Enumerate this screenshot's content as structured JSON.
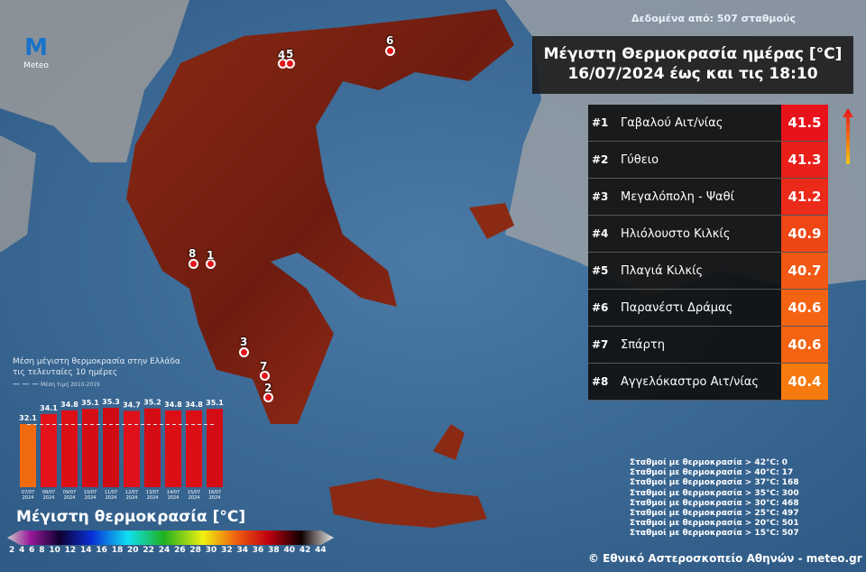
{
  "source_note": "Δεδομένα από: 507 σταθμούς",
  "logo_text": "Meteo",
  "title_line1": "Μέγιστη Θερμοκρασία ημέρας [°C]",
  "title_line2": "16/07/2024 έως και τις 18:10",
  "ranking": [
    {
      "rank": "#1",
      "name": "Γαβαλού Αιτ/νίας",
      "value": "41.5",
      "color": "#e8121b"
    },
    {
      "rank": "#2",
      "name": "Γύθειο",
      "value": "41.3",
      "color": "#ea1f1a"
    },
    {
      "rank": "#3",
      "name": "Μεγαλόπολη - Ψαθί",
      "value": "41.2",
      "color": "#ec2a19"
    },
    {
      "rank": "#4",
      "name": "Ηλιόλουστο Κιλκίς",
      "value": "40.9",
      "color": "#ef4616"
    },
    {
      "rank": "#5",
      "name": "Πλαγιά Κιλκίς",
      "value": "40.7",
      "color": "#f15814"
    },
    {
      "rank": "#6",
      "name": "Παρανέστι Δράμας",
      "value": "40.6",
      "color": "#f36312"
    },
    {
      "rank": "#7",
      "name": "Σπάρτη",
      "value": "40.6",
      "color": "#f36312"
    },
    {
      "rank": "#8",
      "name": "Αγγελόκαστρο Αιτ/νίας",
      "value": "40.4",
      "color": "#f77a0e"
    }
  ],
  "markers": [
    "1",
    "2",
    "3",
    "4",
    "5",
    "6",
    "7",
    "8"
  ],
  "chart_data": {
    "type": "bar",
    "title": "Μέση μέγιστη θερμοκρασία στην Ελλάδα τις τελευταίες 10 ημέρες",
    "reference_label": "Μέση τιμή 2010-2019",
    "reference_value": 32.0,
    "categories": [
      "07/07",
      "08/07",
      "09/07",
      "10/07",
      "11/07",
      "12/07",
      "13/07",
      "14/07",
      "15/07",
      "16/07"
    ],
    "year": "2024",
    "values": [
      32.1,
      34.1,
      34.8,
      35.1,
      35.3,
      34.7,
      35.2,
      34.8,
      34.8,
      35.1
    ],
    "value_labels": [
      "32.1",
      "34.1",
      "34.8",
      "35.1",
      "35.3",
      "34.7",
      "35.2",
      "34.8",
      "34.8",
      "35.1"
    ],
    "colors": [
      "#f26a0f",
      "#e4121a",
      "#dc0f16",
      "#d40d14",
      "#cf0c13",
      "#e0111a",
      "#d40d14",
      "#dc0f16",
      "#dc0f16",
      "#d40d14"
    ]
  },
  "colorbar": {
    "title": "Μέγιστη θερμοκρασία [°C]",
    "ticks": [
      "2",
      "4",
      "6",
      "8",
      "10",
      "12",
      "14",
      "16",
      "18",
      "20",
      "22",
      "24",
      "26",
      "28",
      "30",
      "32",
      "34",
      "36",
      "38",
      "40",
      "42",
      "44"
    ]
  },
  "stats": [
    "Σταθμοί με θερμοκρασία > 42°C: 0",
    "Σταθμοί με θερμοκρασία > 40°C: 17",
    "Σταθμοί με θερμοκρασία > 37°C: 168",
    "Σταθμοί με θερμοκρασία > 35°C: 300",
    "Σταθμοί με θερμοκρασία > 30°C: 468",
    "Σταθμοί με θερμοκρασία > 25°C: 497",
    "Σταθμοί με θερμοκρασία > 20°C: 501",
    "Σταθμοί με θερμοκρασία > 15°C: 507"
  ],
  "copyright": "© Εθνικό Αστεροσκοπείο Αθηνών - meteo.gr"
}
